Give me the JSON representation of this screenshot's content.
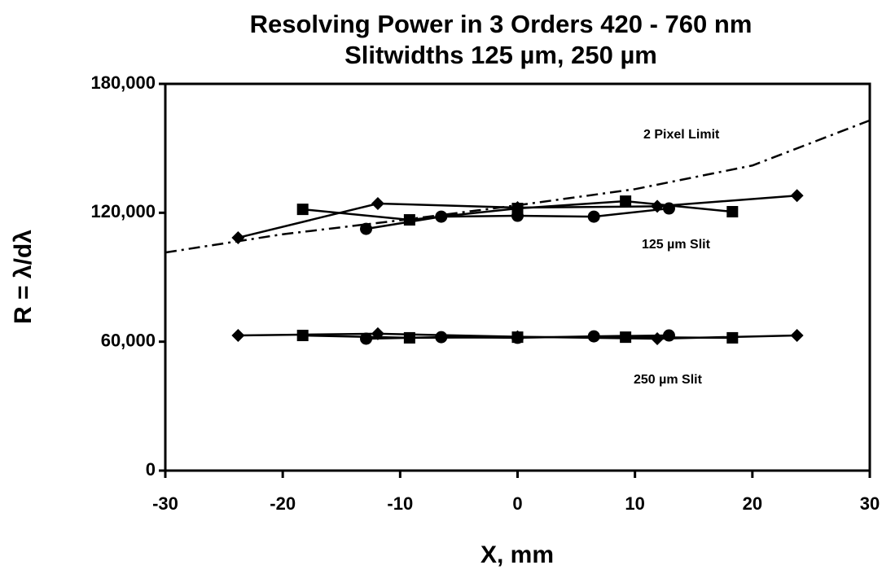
{
  "chart_data": {
    "type": "line",
    "title": "Resolving Power in 3 Orders 420 - 760 nm",
    "subtitle": "Slitwidths 125 µm,   250 µm",
    "x_label": "X, mm",
    "y_label": "R = λ/dλ",
    "xlim": [
      -30,
      30
    ],
    "xticks": [
      -30,
      -20,
      -10,
      0,
      10,
      20,
      30
    ],
    "ylim": [
      0,
      180000
    ],
    "yticks": [
      {
        "value": 0,
        "label": "0"
      },
      {
        "value": 60000,
        "label": "60,000"
      },
      {
        "value": 120000,
        "label": "120,000"
      },
      {
        "value": 180000,
        "label": "180,000"
      }
    ],
    "annotations": [
      "2 Pixel Limit",
      "125 µm Slit",
      "250 µm Slit"
    ],
    "series": [
      {
        "color": "#000000",
        "marker": "diamond",
        "x": [
          -23.8,
          -11.9,
          0,
          11.9,
          23.8
        ],
        "values": [
          108400,
          124300,
          122400,
          123000,
          128000
        ]
      },
      {
        "color": "#000000",
        "marker": "square",
        "x": [
          -18.3,
          -9.2,
          0,
          9.2,
          18.3
        ],
        "values": [
          121600,
          116700,
          122000,
          125400,
          120500
        ]
      },
      {
        "color": "#000000",
        "marker": "circle",
        "x": [
          -12.9,
          -6.5,
          0,
          6.5,
          12.9
        ],
        "values": [
          112500,
          118200,
          118600,
          118200,
          122000
        ]
      },
      {
        "color": "#000000",
        "marker": "diamond",
        "x": [
          -23.8,
          -11.9,
          0,
          11.9,
          23.8
        ],
        "values": [
          62900,
          63700,
          62300,
          61400,
          62900
        ]
      },
      {
        "color": "#000000",
        "marker": "square",
        "x": [
          -18.3,
          -9.2,
          0,
          9.2,
          18.3
        ],
        "values": [
          62900,
          61800,
          62100,
          62100,
          61800
        ]
      },
      {
        "color": "#000000",
        "marker": "circle",
        "x": [
          -12.9,
          -6.5,
          0,
          6.5,
          12.9
        ],
        "values": [
          61400,
          62100,
          61800,
          62500,
          62900
        ]
      },
      {
        "color": "#000000",
        "marker": "none",
        "linestyle": "dashdot",
        "x": [
          -30,
          -20,
          -10,
          0,
          10,
          20,
          30
        ],
        "values": [
          101500,
          110000,
          116500,
          123500,
          131000,
          142000,
          163000
        ]
      }
    ]
  }
}
